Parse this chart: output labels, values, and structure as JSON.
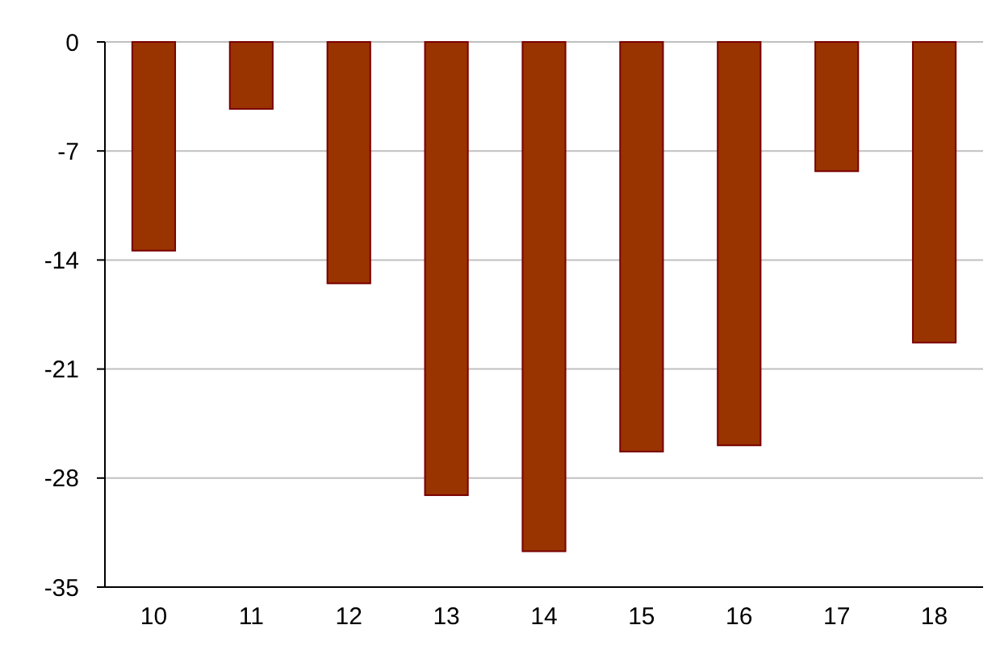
{
  "chart_data": {
    "type": "bar",
    "categories": [
      "10",
      "11",
      "12",
      "13",
      "14",
      "15",
      "16",
      "17",
      "18"
    ],
    "values": [
      -13.4,
      -4.3,
      -15.5,
      -29.1,
      -32.7,
      -26.3,
      -25.9,
      -8.3,
      -19.3
    ],
    "color": "#993300",
    "ylim": [
      -35,
      0
    ],
    "yticks": [
      0,
      -7,
      -14,
      -21,
      -28,
      -35
    ],
    "grid": "y"
  }
}
